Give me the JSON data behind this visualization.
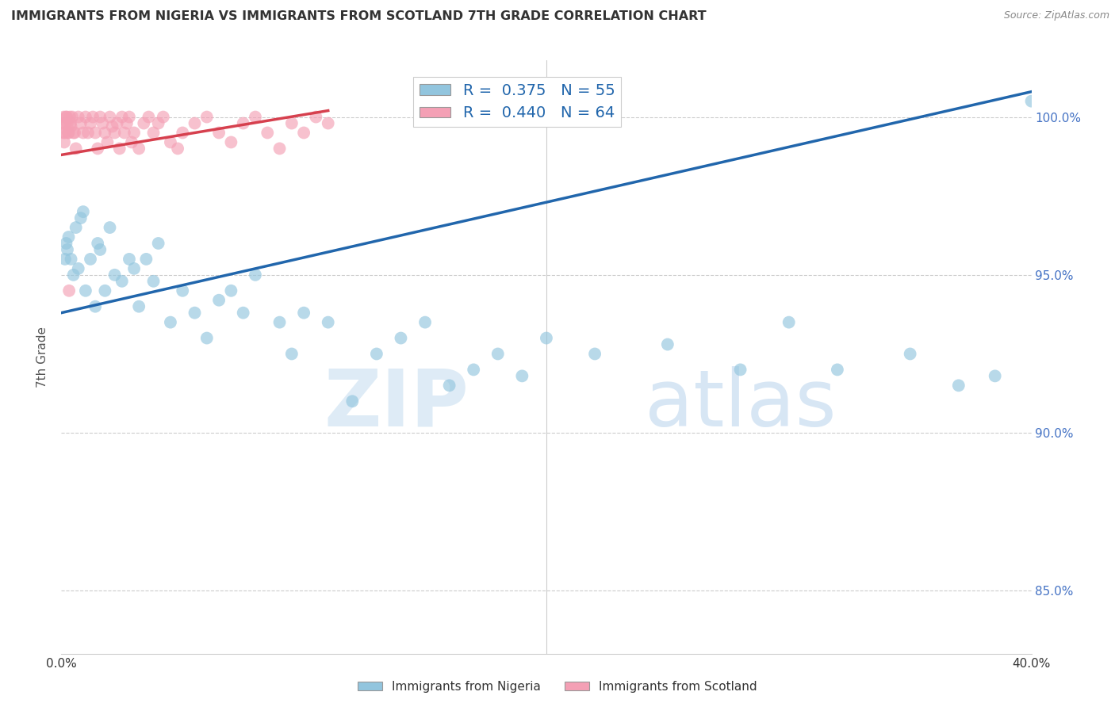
{
  "title": "IMMIGRANTS FROM NIGERIA VS IMMIGRANTS FROM SCOTLAND 7TH GRADE CORRELATION CHART",
  "source": "Source: ZipAtlas.com",
  "ylabel": "7th Grade",
  "xlim": [
    0.0,
    40.0
  ],
  "ylim": [
    83.0,
    101.8
  ],
  "legend_nigeria": "Immigrants from Nigeria",
  "legend_scotland": "Immigrants from Scotland",
  "R_nigeria": 0.375,
  "N_nigeria": 55,
  "R_scotland": 0.44,
  "N_scotland": 64,
  "nigeria_color": "#92c5de",
  "scotland_color": "#f4a0b5",
  "nigeria_line_color": "#2166ac",
  "scotland_line_color": "#d6404e",
  "y_ticks": [
    85.0,
    90.0,
    95.0,
    100.0
  ],
  "nigeria_x": [
    0.15,
    0.2,
    0.25,
    0.3,
    0.4,
    0.5,
    0.6,
    0.7,
    0.8,
    0.9,
    1.0,
    1.2,
    1.4,
    1.5,
    1.6,
    1.8,
    2.0,
    2.2,
    2.5,
    2.8,
    3.0,
    3.2,
    3.5,
    3.8,
    4.0,
    4.5,
    5.0,
    5.5,
    6.0,
    6.5,
    7.0,
    7.5,
    8.0,
    9.0,
    9.5,
    10.0,
    11.0,
    12.0,
    13.0,
    14.0,
    15.0,
    16.0,
    17.0,
    18.0,
    19.0,
    20.0,
    22.0,
    25.0,
    28.0,
    30.0,
    32.0,
    35.0,
    37.0,
    38.5,
    40.0
  ],
  "nigeria_y": [
    95.5,
    96.0,
    95.8,
    96.2,
    95.5,
    95.0,
    96.5,
    95.2,
    96.8,
    97.0,
    94.5,
    95.5,
    94.0,
    96.0,
    95.8,
    94.5,
    96.5,
    95.0,
    94.8,
    95.5,
    95.2,
    94.0,
    95.5,
    94.8,
    96.0,
    93.5,
    94.5,
    93.8,
    93.0,
    94.2,
    94.5,
    93.8,
    95.0,
    93.5,
    92.5,
    93.8,
    93.5,
    91.0,
    92.5,
    93.0,
    93.5,
    91.5,
    92.0,
    92.5,
    91.8,
    93.0,
    92.5,
    92.8,
    92.0,
    93.5,
    92.0,
    92.5,
    91.5,
    91.8,
    100.5
  ],
  "scotland_x": [
    0.05,
    0.1,
    0.15,
    0.2,
    0.25,
    0.3,
    0.35,
    0.4,
    0.45,
    0.5,
    0.6,
    0.7,
    0.8,
    0.9,
    1.0,
    1.1,
    1.2,
    1.3,
    1.4,
    1.5,
    1.6,
    1.7,
    1.8,
    1.9,
    2.0,
    2.1,
    2.2,
    2.3,
    2.4,
    2.5,
    2.6,
    2.7,
    2.8,
    2.9,
    3.0,
    3.2,
    3.4,
    3.6,
    3.8,
    4.0,
    4.2,
    4.5,
    4.8,
    5.0,
    5.5,
    6.0,
    6.5,
    7.0,
    7.5,
    8.0,
    8.5,
    9.0,
    9.5,
    10.0,
    10.5,
    11.0,
    0.08,
    0.12,
    0.18,
    0.22,
    0.28,
    0.32,
    0.38,
    0.55
  ],
  "scotland_y": [
    99.8,
    100.0,
    99.5,
    100.0,
    99.8,
    99.5,
    100.0,
    99.7,
    100.0,
    99.5,
    99.0,
    100.0,
    99.8,
    99.5,
    100.0,
    99.5,
    99.8,
    100.0,
    99.5,
    99.0,
    100.0,
    99.8,
    99.5,
    99.2,
    100.0,
    99.7,
    99.5,
    99.8,
    99.0,
    100.0,
    99.5,
    99.8,
    100.0,
    99.2,
    99.5,
    99.0,
    99.8,
    100.0,
    99.5,
    99.8,
    100.0,
    99.2,
    99.0,
    99.5,
    99.8,
    100.0,
    99.5,
    99.2,
    99.8,
    100.0,
    99.5,
    99.0,
    99.8,
    99.5,
    100.0,
    99.8,
    99.5,
    99.2,
    99.8,
    100.0,
    99.5,
    94.5,
    99.8,
    99.5
  ]
}
